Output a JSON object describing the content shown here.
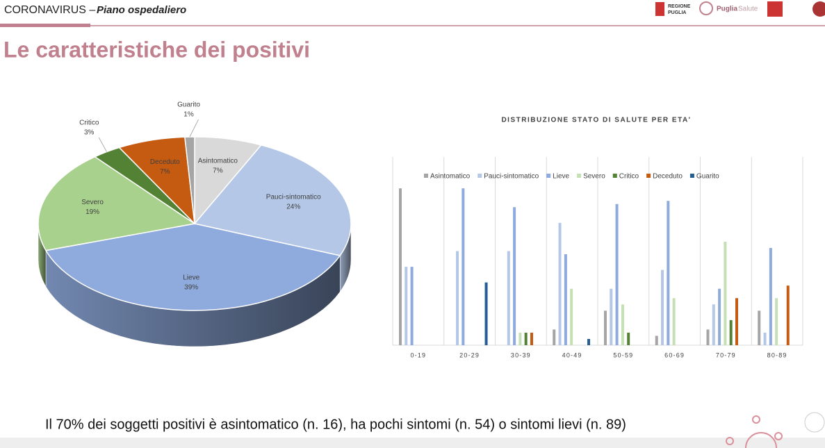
{
  "header": {
    "title": "CORONAVIRUS –",
    "subtitle": "Piano ospedaliero",
    "logos": [
      "REGIONE",
      "PUGLIA",
      "Puglia",
      "Salute"
    ]
  },
  "slide_title": "Le caratteristiche dei positivi",
  "chart_data": [
    {
      "type": "pie",
      "categories": [
        "Asintomatico",
        "Pauci-sintomatico",
        "Lieve",
        "Severo",
        "Critico",
        "Deceduto",
        "Guarito"
      ],
      "values": [
        7,
        24,
        39,
        19,
        3,
        7,
        1
      ],
      "value_labels": [
        "7%",
        "24%",
        "39%",
        "19%",
        "3%",
        "7%",
        "1%"
      ],
      "colors": [
        "#d9d9d9",
        "#b4c7e7",
        "#8faadc",
        "#a9d18e",
        "#548235",
        "#c55a11",
        "#a5a5a5"
      ]
    },
    {
      "type": "bar",
      "title": "DISTRIBUZIONE STATO DI SALUTE PER ETA'",
      "categories": [
        "0-19",
        "20-29",
        "30-39",
        "40-49",
        "50-59",
        "60-69",
        "70-79",
        "80-89"
      ],
      "series": [
        {
          "name": "Asintomatico",
          "color": "#a5a5a5",
          "values": [
            50,
            null,
            null,
            5,
            11,
            3,
            5,
            11
          ]
        },
        {
          "name": "Pauci-sintomatico",
          "color": "#b4c7e7",
          "values": [
            25,
            30,
            30,
            39,
            18,
            24,
            13,
            4
          ]
        },
        {
          "name": "Lieve",
          "color": "#8faadc",
          "values": [
            25,
            50,
            44,
            29,
            45,
            46,
            18,
            31
          ]
        },
        {
          "name": "Severo",
          "color": "#c5e0b4",
          "values": [
            null,
            null,
            4,
            18,
            13,
            15,
            33,
            15
          ]
        },
        {
          "name": "Critico",
          "color": "#548235",
          "values": [
            null,
            null,
            4,
            null,
            4,
            null,
            8,
            null
          ]
        },
        {
          "name": "Deceduto",
          "color": "#c55a11",
          "values": [
            null,
            null,
            4,
            null,
            null,
            null,
            15,
            19
          ]
        },
        {
          "name": "Guarito",
          "color": "#255e91",
          "values": [
            null,
            20,
            null,
            2,
            null,
            null,
            null,
            null
          ]
        }
      ],
      "ylim": [
        0,
        60
      ],
      "grid": true,
      "legend": "top"
    }
  ],
  "footer": "Il 70% dei soggetti positivi è asintomatico (n. 16), ha pochi sintomi (n. 54) o sintomi lievi (n. 89)"
}
